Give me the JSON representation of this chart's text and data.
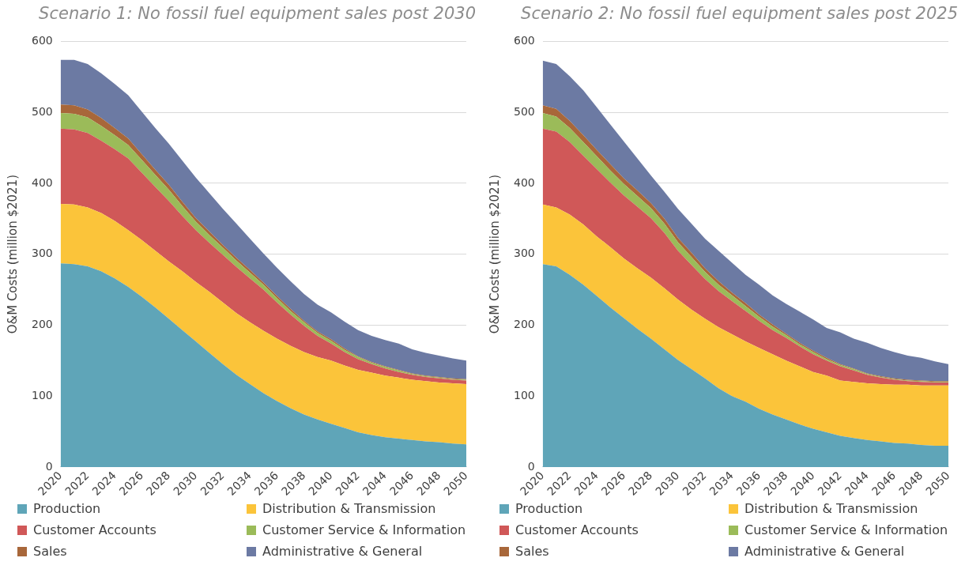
{
  "chart_data": [
    {
      "type": "area",
      "title": "Scenario 1: No fossil fuel equipment sales post 2030",
      "ylabel": "O&M Costs (million $2021)",
      "stacked": true,
      "x": [
        2020,
        2021,
        2022,
        2023,
        2024,
        2025,
        2026,
        2027,
        2028,
        2029,
        2030,
        2031,
        2032,
        2033,
        2034,
        2035,
        2036,
        2037,
        2038,
        2039,
        2040,
        2041,
        2042,
        2043,
        2044,
        2045,
        2046,
        2047,
        2048,
        2049,
        2050
      ],
      "xlim": [
        2020,
        2050
      ],
      "xticks": [
        2020,
        2022,
        2024,
        2026,
        2028,
        2030,
        2032,
        2034,
        2036,
        2038,
        2040,
        2042,
        2044,
        2046,
        2048,
        2050
      ],
      "ylim": [
        0,
        600
      ],
      "yticks": [
        0,
        100,
        200,
        300,
        400,
        500,
        600
      ],
      "grid": "y",
      "legend": "bottom",
      "series": [
        {
          "name": "Production",
          "color": "#5fa5b8",
          "values": [
            287,
            286,
            283,
            276,
            266,
            254,
            240,
            225,
            209,
            193,
            177,
            161,
            145,
            130,
            117,
            104,
            93,
            83,
            74,
            67,
            61,
            55,
            49,
            45,
            42,
            40,
            38,
            36,
            35,
            33,
            32
          ]
        },
        {
          "name": "Distribution & Transmission",
          "color": "#fbc43a",
          "values": [
            84,
            84,
            83,
            82,
            81,
            80,
            80,
            80,
            81,
            83,
            84,
            86,
            87,
            87,
            87,
            88,
            88,
            88,
            88,
            88,
            89,
            88,
            88,
            88,
            87,
            86,
            85,
            85,
            84,
            85,
            85
          ]
        },
        {
          "name": "Customer Accounts",
          "color": "#d05858",
          "values": [
            106,
            106,
            105,
            102,
            101,
            101,
            95,
            90,
            85,
            78,
            73,
            69,
            67,
            65,
            62,
            58,
            51,
            44,
            37,
            30,
            24,
            19,
            15,
            12,
            10,
            8,
            7,
            6,
            6,
            5,
            5
          ]
        },
        {
          "name": "Customer Service & Information",
          "color": "#9bbb59",
          "values": [
            22,
            22,
            22,
            21,
            20,
            19,
            18,
            17,
            16,
            14,
            12,
            11,
            10,
            9,
            8,
            7,
            6,
            5,
            5,
            4,
            4,
            3,
            3,
            2,
            2,
            2,
            1,
            1,
            1,
            1,
            1
          ]
        },
        {
          "name": "Sales",
          "color": "#a8673a",
          "values": [
            12,
            12,
            11,
            11,
            10,
            9,
            8,
            7,
            7,
            6,
            5,
            5,
            4,
            4,
            4,
            3,
            3,
            3,
            2,
            2,
            2,
            2,
            1,
            1,
            1,
            1,
            1,
            1,
            1,
            1,
            1
          ]
        },
        {
          "name": "Administrative & General",
          "color": "#6c7aa3",
          "values": [
            63,
            64,
            64,
            63,
            62,
            61,
            60,
            59,
            58,
            58,
            57,
            54,
            51,
            48,
            44,
            41,
            40,
            39,
            38,
            38,
            38,
            38,
            37,
            37,
            37,
            37,
            34,
            32,
            30,
            28,
            26
          ]
        }
      ]
    },
    {
      "type": "area",
      "title": "Scenario 2: No fossil fuel equipment sales post 2025",
      "ylabel": "O&M Costs (million $2021)",
      "stacked": true,
      "x": [
        2020,
        2021,
        2022,
        2023,
        2024,
        2025,
        2026,
        2027,
        2028,
        2029,
        2030,
        2031,
        2032,
        2033,
        2034,
        2035,
        2036,
        2037,
        2038,
        2039,
        2040,
        2041,
        2042,
        2043,
        2044,
        2045,
        2046,
        2047,
        2048,
        2049,
        2050
      ],
      "xlim": [
        2020,
        2050
      ],
      "xticks": [
        2020,
        2022,
        2024,
        2026,
        2028,
        2030,
        2032,
        2034,
        2036,
        2038,
        2040,
        2042,
        2044,
        2046,
        2048,
        2050
      ],
      "ylim": [
        0,
        600
      ],
      "yticks": [
        0,
        100,
        200,
        300,
        400,
        500,
        600
      ],
      "grid": "y",
      "legend": "bottom",
      "series": [
        {
          "name": "Production",
          "color": "#5fa5b8",
          "values": [
            286,
            283,
            271,
            257,
            241,
            225,
            210,
            195,
            181,
            166,
            151,
            138,
            125,
            111,
            100,
            92,
            82,
            74,
            67,
            60,
            54,
            49,
            44,
            41,
            38,
            36,
            34,
            33,
            31,
            30,
            30
          ]
        },
        {
          "name": "Distribution & Transmission",
          "color": "#fbc43a",
          "values": [
            84,
            83,
            85,
            85,
            84,
            85,
            84,
            85,
            86,
            86,
            85,
            84,
            84,
            86,
            87,
            85,
            86,
            85,
            83,
            82,
            80,
            80,
            78,
            79,
            80,
            81,
            82,
            83,
            84,
            85,
            85
          ]
        },
        {
          "name": "Customer Accounts",
          "color": "#d05858",
          "values": [
            107,
            107,
            102,
            97,
            95,
            91,
            89,
            87,
            84,
            78,
            69,
            63,
            56,
            51,
            47,
            43,
            38,
            34,
            32,
            28,
            25,
            21,
            20,
            16,
            12,
            9,
            7,
            5,
            5,
            4,
            4
          ]
        },
        {
          "name": "Customer Service & Information",
          "color": "#9bbb59",
          "values": [
            22,
            21,
            20,
            19,
            18,
            17,
            16,
            15,
            14,
            13,
            12,
            11,
            10,
            9,
            8,
            7,
            6,
            5,
            4,
            3,
            3,
            2,
            2,
            2,
            1,
            1,
            1,
            1,
            1,
            1,
            1
          ]
        },
        {
          "name": "Sales",
          "color": "#a8673a",
          "values": [
            11,
            11,
            10,
            10,
            9,
            9,
            8,
            8,
            7,
            7,
            6,
            6,
            5,
            5,
            4,
            4,
            3,
            3,
            2,
            2,
            2,
            2,
            1,
            1,
            1,
            1,
            1,
            1,
            1,
            1,
            1
          ]
        },
        {
          "name": "Administrative & General",
          "color": "#6c7aa3",
          "values": [
            63,
            63,
            63,
            63,
            60,
            56,
            52,
            45,
            39,
            38,
            41,
            41,
            42,
            43,
            42,
            40,
            42,
            41,
            42,
            44,
            44,
            42,
            45,
            42,
            43,
            40,
            37,
            34,
            32,
            28,
            24
          ]
        }
      ]
    }
  ]
}
